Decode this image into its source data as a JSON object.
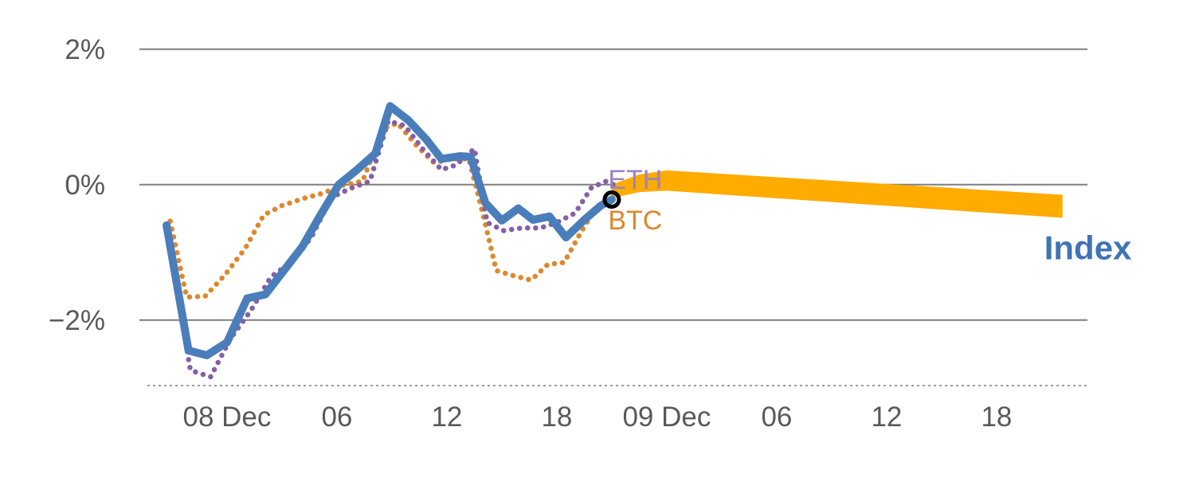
{
  "chart_data": {
    "type": "line",
    "title": "",
    "xlabel": "",
    "ylabel": "",
    "x_unit": "hours since 08 Dec 00:00",
    "xlim": [
      -4.78,
      46.96
    ],
    "ylim": [
      -3.05,
      2.35
    ],
    "grid": "horizontal",
    "legend_position": "inline-labels",
    "colors": {
      "grid": "#7f7f7f",
      "tick_text": "#595959",
      "axis_line": "#9a9a9a",
      "background": "#ffffff"
    },
    "yticks": [
      {
        "value": 2,
        "label": "2%"
      },
      {
        "value": 0,
        "label": "0%"
      },
      {
        "value": -2,
        "label": "−2%"
      }
    ],
    "xticks": [
      {
        "value": 0,
        "label": "08 Dec"
      },
      {
        "value": 6,
        "label": "06"
      },
      {
        "value": 12,
        "label": "12"
      },
      {
        "value": 18,
        "label": "18"
      },
      {
        "value": 24,
        "label": "09 Dec"
      },
      {
        "value": 30,
        "label": "06"
      },
      {
        "value": 36,
        "label": "12"
      },
      {
        "value": 42,
        "label": "18"
      }
    ],
    "series": [
      {
        "name": "BTC",
        "color": "#df872c",
        "style": "dotted",
        "width": 6.5,
        "label": {
          "t": 20.8,
          "v": -0.66,
          "size": 34,
          "bold": false,
          "color": "#df872c"
        },
        "points": [
          [
            -3.1,
            -0.54
          ],
          [
            -2.2,
            -1.66
          ],
          [
            -1.2,
            -1.65
          ],
          [
            -0.1,
            -1.33
          ],
          [
            1.0,
            -0.94
          ],
          [
            2.0,
            -0.45
          ],
          [
            3.0,
            -0.31
          ],
          [
            4.1,
            -0.21
          ],
          [
            5.2,
            -0.13
          ],
          [
            6.3,
            -0.01
          ],
          [
            7.4,
            0.05
          ],
          [
            8.5,
            0.82
          ],
          [
            9.3,
            0.91
          ],
          [
            10.3,
            0.59
          ],
          [
            11.3,
            0.32
          ],
          [
            12.2,
            0.38
          ],
          [
            13.2,
            0.38
          ],
          [
            14.0,
            -0.47
          ],
          [
            14.7,
            -1.27
          ],
          [
            15.7,
            -1.35
          ],
          [
            16.6,
            -1.41
          ],
          [
            17.5,
            -1.18
          ],
          [
            18.4,
            -1.15
          ],
          [
            19.3,
            -0.71
          ],
          [
            20.2,
            -0.31
          ],
          [
            21.0,
            -0.21
          ]
        ]
      },
      {
        "name": "ETH",
        "color": "#8560a8",
        "style": "dotted",
        "width": 6.5,
        "label": {
          "t": 20.8,
          "v": -0.06,
          "size": 34,
          "bold": false,
          "color": "#9b84bd"
        },
        "points": [
          [
            -3.3,
            -0.59
          ],
          [
            -2.0,
            -2.74
          ],
          [
            -0.9,
            -2.84
          ],
          [
            0.2,
            -2.27
          ],
          [
            1.3,
            -1.86
          ],
          [
            2.4,
            -1.36
          ],
          [
            3.5,
            -1.15
          ],
          [
            4.6,
            -0.78
          ],
          [
            5.7,
            -0.19
          ],
          [
            6.7,
            -0.06
          ],
          [
            7.8,
            0.05
          ],
          [
            8.8,
            0.94
          ],
          [
            9.7,
            0.87
          ],
          [
            10.7,
            0.52
          ],
          [
            11.7,
            0.22
          ],
          [
            12.5,
            0.29
          ],
          [
            13.5,
            0.53
          ],
          [
            14.2,
            -0.56
          ],
          [
            15.1,
            -0.68
          ],
          [
            16.1,
            -0.64
          ],
          [
            17.1,
            -0.64
          ],
          [
            18.0,
            -0.56
          ],
          [
            19.0,
            -0.42
          ],
          [
            19.9,
            -0.04
          ],
          [
            20.7,
            0.05
          ],
          [
            21.1,
            0.0
          ]
        ]
      },
      {
        "name": "Index",
        "color": "#4a7ebb",
        "style": "solid",
        "width": 10,
        "label": {
          "t": 44.6,
          "v": -1.1,
          "size": 42,
          "bold": true,
          "color": "#3f74b5"
        },
        "points": [
          [
            -3.3,
            -0.6
          ],
          [
            -2.1,
            -2.45
          ],
          [
            -1.1,
            -2.52
          ],
          [
            0.0,
            -2.33
          ],
          [
            1.1,
            -1.68
          ],
          [
            2.1,
            -1.62
          ],
          [
            3.1,
            -1.27
          ],
          [
            4.1,
            -0.92
          ],
          [
            5.1,
            -0.45
          ],
          [
            6.1,
            0.0
          ],
          [
            7.1,
            0.22
          ],
          [
            8.1,
            0.46
          ],
          [
            8.9,
            1.16
          ],
          [
            9.9,
            0.95
          ],
          [
            10.9,
            0.66
          ],
          [
            11.7,
            0.38
          ],
          [
            12.7,
            0.42
          ],
          [
            13.3,
            0.41
          ],
          [
            14.1,
            -0.27
          ],
          [
            15.0,
            -0.53
          ],
          [
            15.9,
            -0.35
          ],
          [
            16.7,
            -0.52
          ],
          [
            17.6,
            -0.47
          ],
          [
            18.5,
            -0.78
          ],
          [
            19.5,
            -0.52
          ],
          [
            20.4,
            -0.31
          ],
          [
            21.0,
            -0.22
          ]
        ]
      }
    ],
    "forecast_band": {
      "name": "Index forecast",
      "color": "#ffab00",
      "points": [
        {
          "t": 21.0,
          "mid": -0.1,
          "half": 0.1
        },
        {
          "t": 22.5,
          "mid": 0.02,
          "half": 0.13
        },
        {
          "t": 24.0,
          "mid": 0.06,
          "half": 0.15
        },
        {
          "t": 45.6,
          "mid": -0.32,
          "half": 0.17
        }
      ]
    },
    "marker": {
      "t": 21.0,
      "v": -0.22,
      "shape": "open-circle",
      "color": "#000000",
      "radius": 9,
      "stroke_width": 5
    }
  }
}
